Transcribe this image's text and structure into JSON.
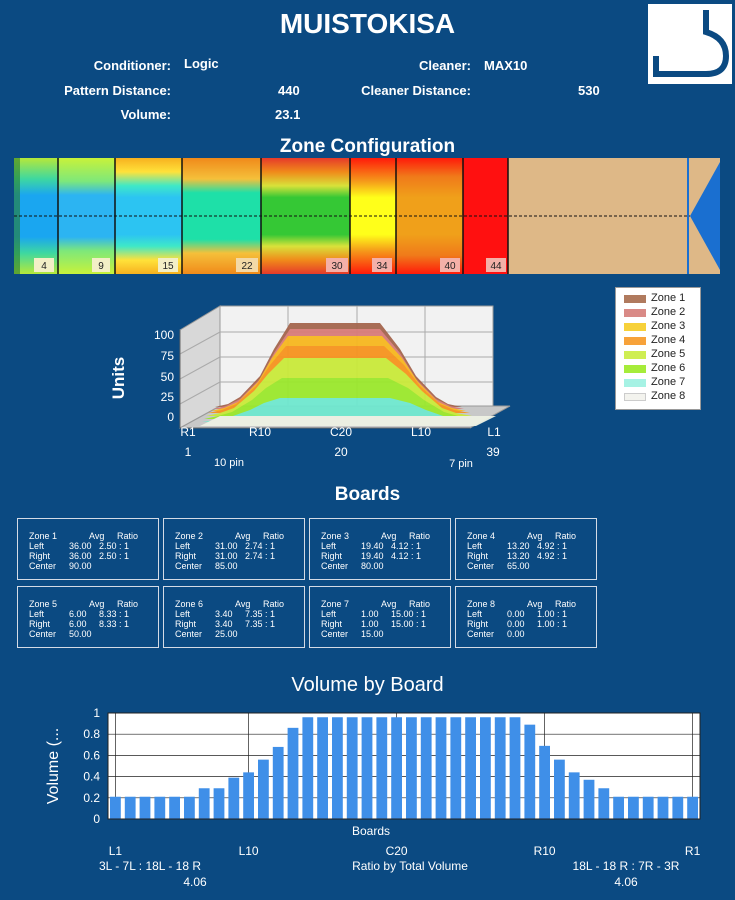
{
  "header": {
    "title": "MUISTOKISA",
    "conditioner_label": "Conditioner:",
    "conditioner_value": "Logic",
    "cleaner_label": "Cleaner:",
    "cleaner_value": "MAX10",
    "pattern_distance_label": "Pattern Distance:",
    "pattern_distance_value": "440",
    "cleaner_distance_label": "Cleaner Distance:",
    "cleaner_distance_value": "530",
    "volume_label": "Volume:",
    "volume_value": "23.1"
  },
  "zone_config": {
    "title": "Zone Configuration",
    "markers": [
      "4",
      "9",
      "15",
      "22",
      "30",
      "34",
      "40",
      "44"
    ]
  },
  "chart_3d": {
    "ylabel": "Units",
    "yticks": [
      "0",
      "25",
      "50",
      "75",
      "100"
    ],
    "xticks": [
      "R1",
      "R10",
      "C20",
      "L10",
      "L1"
    ],
    "board_numbers": [
      "1",
      "20",
      "39"
    ],
    "pin_labels": [
      "10 pin",
      "7 pin"
    ],
    "legend": [
      {
        "name": "Zone 1",
        "color": "#b07a5e"
      },
      {
        "name": "Zone 2",
        "color": "#d98a86"
      },
      {
        "name": "Zone 3",
        "color": "#f7d13a"
      },
      {
        "name": "Zone 4",
        "color": "#f7a23a"
      },
      {
        "name": "Zone 5",
        "color": "#cfee52"
      },
      {
        "name": "Zone 6",
        "color": "#a6ec3a"
      },
      {
        "name": "Zone 7",
        "color": "#a6f2e4"
      },
      {
        "name": "Zone 8",
        "color": "#f3f3ee"
      }
    ]
  },
  "boards": {
    "title": "Boards",
    "col_avg": "Avg",
    "col_ratio": "Ratio",
    "row_left": "Left",
    "row_right": "Right",
    "row_center": "Center",
    "zones": [
      {
        "name": "Zone 1",
        "left_avg": "36.00",
        "left_ratio": "2.50 : 1",
        "right_avg": "36.00",
        "right_ratio": "2.50 : 1",
        "center": "90.00"
      },
      {
        "name": "Zone 2",
        "left_avg": "31.00",
        "left_ratio": "2.74 : 1",
        "right_avg": "31.00",
        "right_ratio": "2.74 : 1",
        "center": "85.00"
      },
      {
        "name": "Zone 3",
        "left_avg": "19.40",
        "left_ratio": "4.12 : 1",
        "right_avg": "19.40",
        "right_ratio": "4.12 : 1",
        "center": "80.00"
      },
      {
        "name": "Zone 4",
        "left_avg": "13.20",
        "left_ratio": "4.92 : 1",
        "right_avg": "13.20",
        "right_ratio": "4.92 : 1",
        "center": "65.00"
      },
      {
        "name": "Zone 5",
        "left_avg": "6.00",
        "left_ratio": "8.33 : 1",
        "right_avg": "6.00",
        "right_ratio": "8.33 : 1",
        "center": "50.00"
      },
      {
        "name": "Zone 6",
        "left_avg": "3.40",
        "left_ratio": "7.35 : 1",
        "right_avg": "3.40",
        "right_ratio": "7.35 : 1",
        "center": "25.00"
      },
      {
        "name": "Zone 7",
        "left_avg": "1.00",
        "left_ratio": "15.00 : 1",
        "right_avg": "1.00",
        "right_ratio": "15.00 : 1",
        "center": "15.00"
      },
      {
        "name": "Zone 8",
        "left_avg": "0.00",
        "left_ratio": "1.00 : 1",
        "right_avg": "0.00",
        "right_ratio": "1.00 : 1",
        "center": "0.00"
      }
    ]
  },
  "volume": {
    "left_ratio_label": "3L - 7L : 18L - 18 R",
    "left_ratio_value": "4.06",
    "center_label": "Ratio by Total Volume",
    "right_ratio_label": "18L - 18 R : 7R - 3R",
    "right_ratio_value": "4.06"
  },
  "chart_data": {
    "type": "bar",
    "title": "Volume by Board",
    "xlabel": "Boards",
    "ylabel": "Volume (...",
    "ylim": [
      0,
      1
    ],
    "yticks": [
      "0",
      "0.2",
      "0.4",
      "0.6",
      "0.8",
      "1"
    ],
    "xticks": [
      "L1",
      "L10",
      "C20",
      "R10",
      "R1"
    ],
    "grid": true,
    "bar_color": "#3f8fe8",
    "values": [
      0.21,
      0.21,
      0.21,
      0.21,
      0.21,
      0.21,
      0.29,
      0.29,
      0.39,
      0.44,
      0.56,
      0.68,
      0.86,
      0.96,
      0.96,
      0.96,
      0.96,
      0.96,
      0.96,
      0.96,
      0.96,
      0.96,
      0.96,
      0.96,
      0.96,
      0.96,
      0.96,
      0.96,
      0.89,
      0.69,
      0.56,
      0.44,
      0.37,
      0.29,
      0.21,
      0.21,
      0.21,
      0.21,
      0.21,
      0.21
    ]
  }
}
